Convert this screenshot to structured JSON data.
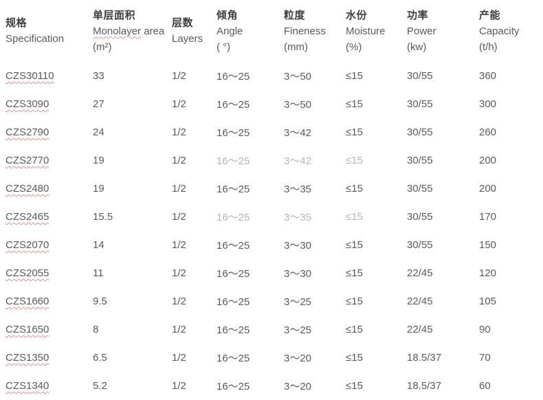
{
  "table": {
    "columns": [
      {
        "key": "spec",
        "zh": "规格",
        "en": "Specification",
        "unit": ""
      },
      {
        "key": "monolayer",
        "zh": "单层面积",
        "en": "Monolayer area",
        "unit": "(m²)",
        "misspelled": "Monolayer"
      },
      {
        "key": "layers",
        "zh": "层数",
        "en": "Layers",
        "unit": ""
      },
      {
        "key": "angle",
        "zh": "倾角",
        "en": "Angle",
        "unit": "( °)"
      },
      {
        "key": "fineness",
        "zh": "粒度",
        "en": "Fineness",
        "unit": "(mm)"
      },
      {
        "key": "moisture",
        "zh": "水份",
        "en": "Moisture",
        "unit": "(%)"
      },
      {
        "key": "power",
        "zh": "功率",
        "en": "Power",
        "unit": "(kw)"
      },
      {
        "key": "capacity",
        "zh": "产能",
        "en": "Capacity",
        "unit": "(t/h)"
      }
    ],
    "rows": [
      {
        "spec": "CZS30110",
        "monolayer": "33",
        "layers": "1/2",
        "angle": "16～25",
        "fineness": "3～50",
        "moisture": "≤15",
        "power": "30/55",
        "capacity": "360"
      },
      {
        "spec": "CZS3090",
        "monolayer": "27",
        "layers": "1/2",
        "angle": "16～25",
        "fineness": "3～50",
        "moisture": "≤15",
        "power": "30/55",
        "capacity": "300"
      },
      {
        "spec": "CZS2790",
        "monolayer": "24",
        "layers": "1/2",
        "angle": "16～25",
        "fineness": "3～42",
        "moisture": "≤15",
        "power": "30/55",
        "capacity": "260"
      },
      {
        "spec": "CZS2770",
        "monolayer": "19",
        "layers": "1/2",
        "angle": "16～25",
        "fineness": "3～42",
        "moisture": "≤15",
        "power": "30/55",
        "capacity": "200"
      },
      {
        "spec": "CZS2480",
        "monolayer": "19",
        "layers": "1/2",
        "angle": "16～25",
        "fineness": "3～35",
        "moisture": "≤15",
        "power": "30/55",
        "capacity": "200"
      },
      {
        "spec": "CZS2465",
        "monolayer": "15.5",
        "layers": "1/2",
        "angle": "16～25",
        "fineness": "3～35",
        "moisture": "≤15",
        "power": "30/55",
        "capacity": "170"
      },
      {
        "spec": "CZS2070",
        "monolayer": "14",
        "layers": "1/2",
        "angle": "16～25",
        "fineness": "3～30",
        "moisture": "≤15",
        "power": "30/55",
        "capacity": "150"
      },
      {
        "spec": "CZS2055",
        "monolayer": "11",
        "layers": "1/2",
        "angle": "16～25",
        "fineness": "3～30",
        "moisture": "≤15",
        "power": "22/45",
        "capacity": "120"
      },
      {
        "spec": "CZS1660",
        "monolayer": "9.5",
        "layers": "1/2",
        "angle": "16～25",
        "fineness": "3～25",
        "moisture": "≤15",
        "power": "22/45",
        "capacity": "105"
      },
      {
        "spec": "CZS1650",
        "monolayer": "8",
        "layers": "1/2",
        "angle": "16～25",
        "fineness": "3～25",
        "moisture": "≤15",
        "power": "22/45",
        "capacity": "90"
      },
      {
        "spec": "CZS1350",
        "monolayer": "6.5",
        "layers": "1/2",
        "angle": "16～25",
        "fineness": "3～20",
        "moisture": "≤15",
        "power": "18.5/37",
        "capacity": "70"
      },
      {
        "spec": "CZS1340",
        "monolayer": "5.2",
        "layers": "1/2",
        "angle": "16～25",
        "fineness": "3～20",
        "moisture": "≤15",
        "power": "18.5/37",
        "capacity": "60"
      }
    ],
    "faded_cells": [
      [
        3,
        "angle"
      ],
      [
        3,
        "fineness"
      ],
      [
        3,
        "moisture"
      ],
      [
        5,
        "angle"
      ],
      [
        5,
        "fineness"
      ],
      [
        5,
        "moisture"
      ]
    ]
  },
  "colors": {
    "text": "#595959",
    "heading": "#3c3c3c",
    "squiggle": "#e59190",
    "background": "#ffffff"
  }
}
